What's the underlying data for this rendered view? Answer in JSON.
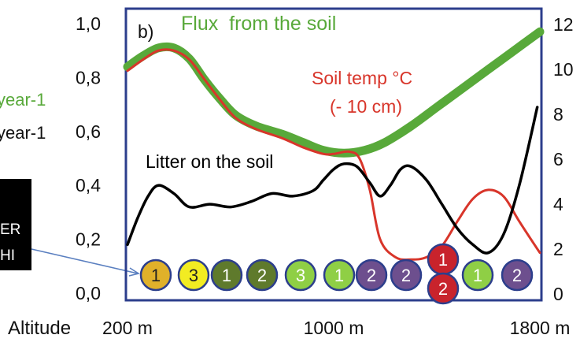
{
  "chart_data": {
    "type": "line",
    "panel_label": "b)",
    "left_axis": {
      "ylim": [
        0,
        1.0
      ],
      "ticks": [
        "0,0",
        "0,2",
        "0,4",
        "0,6",
        "0,8",
        "1,0"
      ]
    },
    "right_axis": {
      "ylim": [
        0,
        12
      ],
      "ticks": [
        "0",
        "2",
        "4",
        "6",
        "8",
        "10",
        "12"
      ]
    },
    "x_axis": {
      "title": "Altitude",
      "xlim": [
        200,
        1800
      ],
      "ticks": [
        "200 m",
        "1000 m",
        "1800 m"
      ]
    },
    "truncated_left_labels": [
      "year-1",
      "year-1"
    ],
    "left_box_lines": [
      "",
      "ER",
      "HI"
    ],
    "series": [
      {
        "name": "Flux  from the soil",
        "color": "#58a93a",
        "axis": "left",
        "x": [
          200,
          260,
          320,
          380,
          440,
          500,
          560,
          620,
          700,
          800,
          880,
          960,
          1040,
          1120,
          1200,
          1300,
          1400,
          1500,
          1600,
          1700,
          1800
        ],
        "y": [
          0.84,
          0.88,
          0.91,
          0.91,
          0.87,
          0.79,
          0.72,
          0.66,
          0.62,
          0.59,
          0.56,
          0.53,
          0.52,
          0.53,
          0.56,
          0.62,
          0.69,
          0.76,
          0.83,
          0.9,
          0.97
        ]
      },
      {
        "name": "Soil temp °C (- 10 cm)",
        "color": "#d8352a",
        "axis": "right",
        "x": [
          200,
          260,
          320,
          380,
          440,
          500,
          560,
          620,
          700,
          800,
          880,
          960,
          1000,
          1060,
          1100,
          1140,
          1180,
          1240,
          1300,
          1360,
          1420,
          1480,
          1540,
          1600,
          1660,
          1720,
          1800
        ],
        "y": [
          9.9,
          10.4,
          10.8,
          10.8,
          10.4,
          9.5,
          8.6,
          7.8,
          7.3,
          6.9,
          6.5,
          6.2,
          6.2,
          6.3,
          6.0,
          4.6,
          2.4,
          1.6,
          1.5,
          1.6,
          2.1,
          3.2,
          4.2,
          4.6,
          4.3,
          3.2,
          1.8
        ]
      },
      {
        "name": "Litter on the soil",
        "color": "#000000",
        "axis": "left",
        "x": [
          200,
          240,
          280,
          320,
          380,
          440,
          520,
          600,
          680,
          760,
          840,
          920,
          960,
          1000,
          1040,
          1090,
          1140,
          1180,
          1220,
          1260,
          1300,
          1360,
          1420,
          1480,
          1540,
          1600,
          1660,
          1720,
          1790
        ],
        "y": [
          0.18,
          0.28,
          0.36,
          0.4,
          0.37,
          0.32,
          0.33,
          0.32,
          0.34,
          0.37,
          0.36,
          0.38,
          0.42,
          0.46,
          0.48,
          0.47,
          0.41,
          0.36,
          0.4,
          0.46,
          0.47,
          0.42,
          0.33,
          0.24,
          0.18,
          0.15,
          0.22,
          0.4,
          0.69
        ]
      }
    ],
    "annotations": [
      {
        "text": "Flux  from the soil",
        "color": "#58a93a"
      },
      {
        "text": "Soil temp °C",
        "color": "#d8352a"
      },
      {
        "text": "(- 10 cm)",
        "color": "#d8352a"
      },
      {
        "text": "Litter on the soil",
        "color": "#000000"
      }
    ],
    "markers": [
      {
        "label": "1",
        "fill": "#e0b12a",
        "text_color": "#222222"
      },
      {
        "label": "3",
        "fill": "#f2ec22",
        "text_color": "#222222"
      },
      {
        "label": "1",
        "fill": "#5f7a2c",
        "text_color": "#ffffff"
      },
      {
        "label": "2",
        "fill": "#5f7a2c",
        "text_color": "#ffffff"
      },
      {
        "label": "3",
        "fill": "#8fcf45",
        "text_color": "#ffffff"
      },
      {
        "label": "1",
        "fill": "#8fcf45",
        "text_color": "#ffffff"
      },
      {
        "label": "2",
        "fill": "#6d4f8e",
        "text_color": "#ffffff"
      },
      {
        "label": "2",
        "fill": "#6d4f8e",
        "text_color": "#ffffff"
      },
      {
        "label": "1",
        "fill": "#c8232c",
        "text_color": "#ffffff"
      },
      {
        "label": "2",
        "fill": "#c8232c",
        "text_color": "#ffffff"
      },
      {
        "label": "1",
        "fill": "#8fcf45",
        "text_color": "#ffffff"
      },
      {
        "label": "2",
        "fill": "#6d4f8e",
        "text_color": "#ffffff"
      }
    ],
    "frame_color": "#2c3e8c",
    "marker_outline": "#2c3e8c"
  }
}
